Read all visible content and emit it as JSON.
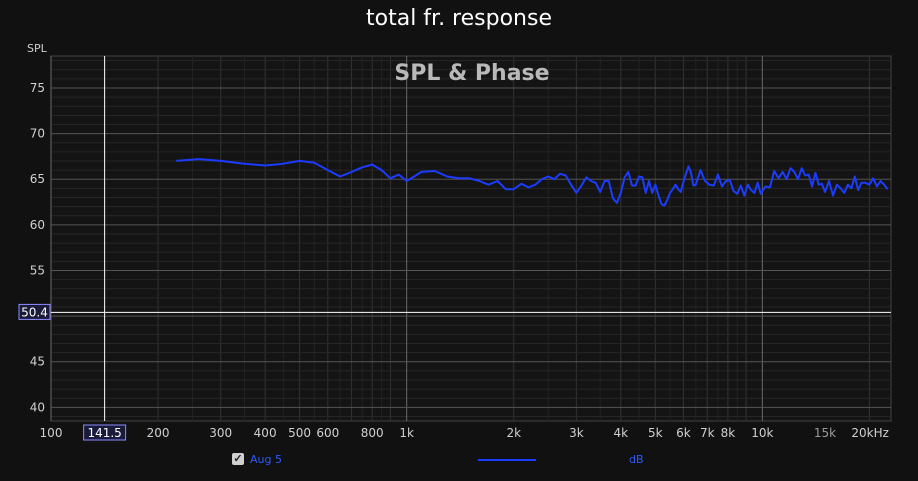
{
  "window_title": "total fr. response",
  "legend": {
    "checked": true,
    "check_glyph": "✓",
    "name": "Aug 5",
    "unit": "dB",
    "color": "#1b3cff"
  },
  "cursor": {
    "x_label": "141.5",
    "y_label": "50.4",
    "x_value": 141.5,
    "y_value": 50.4
  },
  "colors": {
    "background": "#111111",
    "trace": "#1b3cff",
    "grid_major": "#5a5a5a",
    "grid_minor": "#2c2c2c",
    "cursor": "#ffffff"
  },
  "chart_data": {
    "type": "line",
    "title": "SPL & Phase",
    "ylabel": "SPL",
    "xlabel": "",
    "x_scale": "log",
    "xlim": [
      100,
      23000
    ],
    "ylim": [
      38.5,
      78.5
    ],
    "grid": true,
    "x_tick_labels": [
      {
        "v": 100,
        "t": "100"
      },
      {
        "v": 200,
        "t": "200"
      },
      {
        "v": 300,
        "t": "300"
      },
      {
        "v": 400,
        "t": "400"
      },
      {
        "v": 500,
        "t": "500"
      },
      {
        "v": 600,
        "t": "600"
      },
      {
        "v": 800,
        "t": "800"
      },
      {
        "v": 1000,
        "t": "1k"
      },
      {
        "v": 2000,
        "t": "2k"
      },
      {
        "v": 3000,
        "t": "3k"
      },
      {
        "v": 4000,
        "t": "4k"
      },
      {
        "v": 5000,
        "t": "5k"
      },
      {
        "v": 6000,
        "t": "6k"
      },
      {
        "v": 7000,
        "t": "7k"
      },
      {
        "v": 8000,
        "t": "8k"
      },
      {
        "v": 10000,
        "t": "10k"
      },
      {
        "v": 15000,
        "t": "15k"
      },
      {
        "v": 20000,
        "t": "20kHz"
      }
    ],
    "y_tick_labels": [
      "40",
      "45",
      "50",
      "55",
      "60",
      "65",
      "70",
      "75"
    ],
    "series": [
      {
        "name": "Aug 5",
        "x": [
          225,
          260,
          300,
          350,
          400,
          450,
          500,
          550,
          600,
          650,
          700,
          750,
          800,
          850,
          900,
          950,
          1000,
          1050,
          1100,
          1200,
          1300,
          1400,
          1500,
          1600,
          1700,
          1800,
          1900,
          2000,
          2100,
          2200,
          2300,
          2400,
          2500,
          2600,
          2700,
          2800,
          2900,
          3000,
          3100,
          3200,
          3300,
          3400,
          3500,
          3600,
          3700,
          3800,
          3900,
          4000,
          4100,
          4200,
          4300,
          4400,
          4500,
          4600,
          4700,
          4800,
          4900,
          5000,
          5100,
          5200,
          5300,
          5400,
          5500,
          5600,
          5700,
          5800,
          5900,
          6000,
          6100,
          6200,
          6300,
          6400,
          6500,
          6700,
          6900,
          7100,
          7300,
          7500,
          7700,
          7900,
          8100,
          8300,
          8500,
          8700,
          8900,
          9100,
          9300,
          9500,
          9700,
          9900,
          10200,
          10500,
          10800,
          11100,
          11400,
          11700,
          12000,
          12300,
          12600,
          12900,
          13200,
          13500,
          13800,
          14100,
          14400,
          14700,
          15000,
          15400,
          15800,
          16200,
          16600,
          17000,
          17400,
          17800,
          18200,
          18600,
          19000,
          19500,
          20000,
          20500,
          21000,
          21500,
          22000,
          22500
        ],
        "y": [
          67.0,
          67.2,
          67.0,
          66.7,
          66.5,
          66.7,
          67.0,
          66.8,
          66.0,
          65.3,
          65.8,
          66.3,
          66.6,
          66.0,
          65.1,
          65.5,
          64.8,
          65.3,
          65.8,
          65.9,
          65.3,
          65.1,
          65.1,
          64.8,
          64.4,
          64.8,
          63.9,
          63.9,
          64.5,
          64.1,
          64.4,
          65.0,
          65.3,
          65.0,
          65.6,
          65.4,
          64.4,
          63.5,
          64.3,
          65.2,
          64.8,
          64.6,
          63.6,
          64.8,
          64.8,
          62.9,
          62.4,
          63.5,
          65.2,
          65.8,
          64.3,
          64.3,
          65.3,
          65.2,
          63.5,
          64.8,
          63.5,
          64.4,
          63.3,
          62.3,
          62.1,
          62.7,
          63.5,
          63.9,
          64.4,
          63.9,
          63.6,
          64.7,
          65.6,
          66.4,
          65.7,
          64.3,
          64.4,
          66.0,
          64.8,
          64.4,
          64.3,
          65.5,
          64.2,
          64.8,
          64.9,
          63.7,
          63.4,
          64.3,
          63.2,
          64.4,
          63.8,
          63.5,
          64.6,
          63.4,
          64.2,
          64.1,
          65.9,
          65.1,
          65.8,
          65.0,
          66.2,
          65.8,
          65.0,
          66.2,
          65.4,
          65.5,
          64.2,
          65.7,
          64.4,
          64.5,
          63.6,
          64.8,
          63.2,
          64.4,
          64.0,
          63.5,
          64.4,
          64.0,
          65.3,
          63.8,
          64.6,
          64.6,
          64.4,
          65.1,
          64.2,
          64.8,
          64.4,
          63.9
        ]
      }
    ]
  }
}
